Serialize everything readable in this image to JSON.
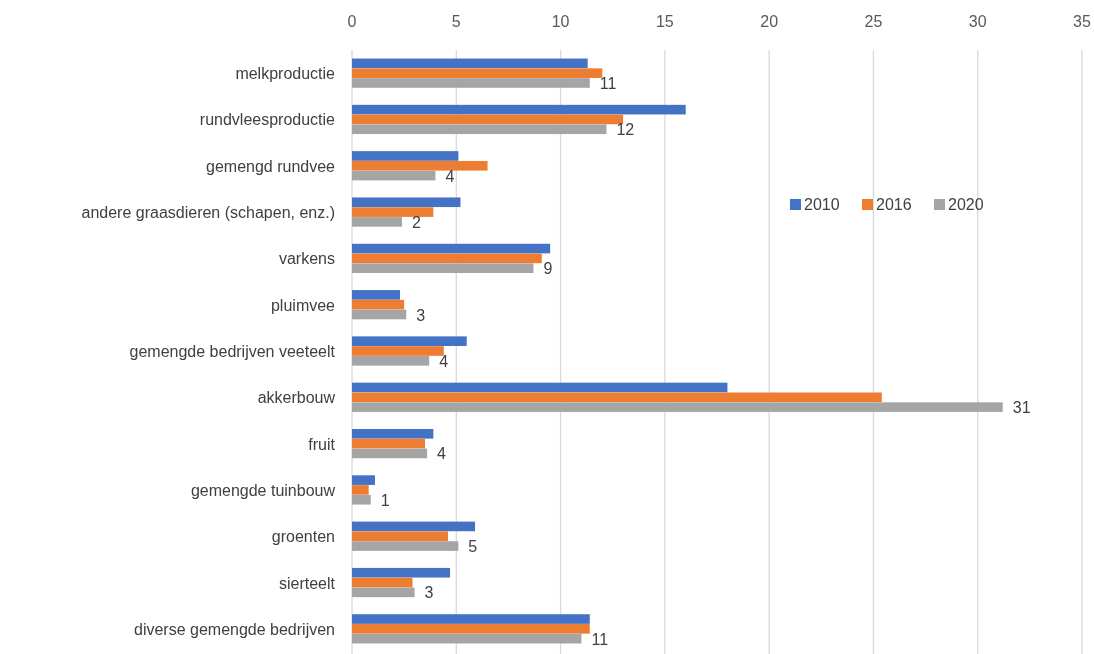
{
  "chart_data": {
    "type": "bar",
    "orientation": "horizontal",
    "categories": [
      "melkproductie",
      "rundvleesproductie",
      "gemengd rundvee",
      "andere graasdieren (schapen, enz.)",
      "varkens",
      "pluimvee",
      "gemengde bedrijven veeteelt",
      "akkerbouw",
      "fruit",
      "gemengde tuinbouw",
      "groenten",
      "sierteelt",
      "diverse gemengde bedrijven"
    ],
    "series": [
      {
        "name": "2010",
        "color": "#4472c4",
        "values": [
          11.3,
          16.0,
          5.1,
          5.2,
          9.5,
          2.3,
          5.5,
          18.0,
          3.9,
          1.1,
          5.9,
          4.7,
          11.4
        ]
      },
      {
        "name": "2016",
        "color": "#ed7d31",
        "values": [
          12.0,
          13.0,
          6.5,
          3.9,
          9.1,
          2.5,
          4.4,
          25.4,
          3.5,
          0.8,
          4.6,
          2.9,
          11.4
        ]
      },
      {
        "name": "2020",
        "color": "#a5a5a5",
        "values": [
          11.4,
          12.2,
          4.0,
          2.4,
          8.7,
          2.6,
          3.7,
          31.2,
          3.6,
          0.9,
          5.1,
          3.0,
          11.0
        ],
        "value_labels": [
          "11",
          "12",
          "4",
          "2",
          "9",
          "3",
          "4",
          "31",
          "4",
          "1",
          "5",
          "3",
          "11"
        ]
      }
    ],
    "xlim": [
      0,
      35
    ],
    "xticks": [
      0,
      5,
      10,
      15,
      20,
      25,
      30,
      35
    ],
    "grid": "x",
    "legend": "right"
  }
}
